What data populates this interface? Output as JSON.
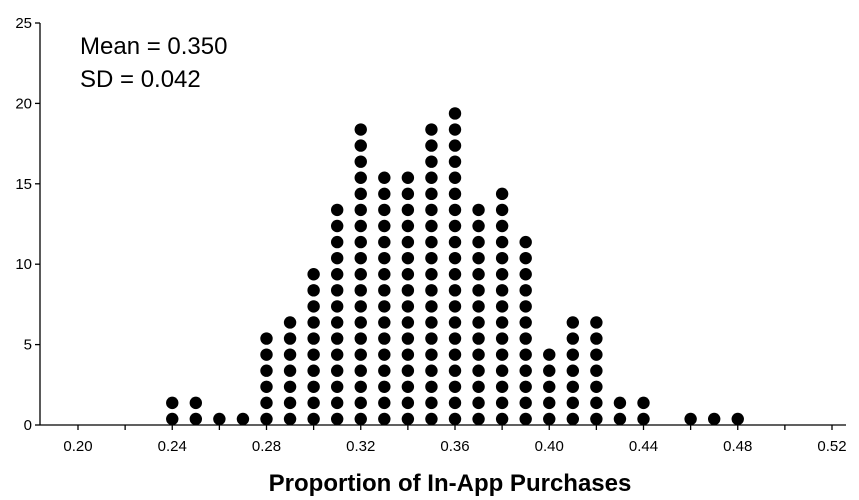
{
  "chart_data": {
    "type": "dot",
    "xlabel": "Proportion of In-App Purchases",
    "ylabel": "",
    "xlim": [
      0.2,
      0.52
    ],
    "ylim": [
      0,
      25
    ],
    "x_ticks": [
      "0.20",
      "0.24",
      "0.28",
      "0.32",
      "0.36",
      "0.40",
      "0.44",
      "0.48",
      "0.52"
    ],
    "y_ticks": [
      "0",
      "5",
      "10",
      "15",
      "20",
      "25"
    ],
    "annotations": [
      "Mean = 0.350",
      "SD = 0.042"
    ],
    "points": [
      {
        "x": 0.24,
        "count": 2
      },
      {
        "x": 0.25,
        "count": 2
      },
      {
        "x": 0.26,
        "count": 1
      },
      {
        "x": 0.27,
        "count": 1
      },
      {
        "x": 0.28,
        "count": 6
      },
      {
        "x": 0.29,
        "count": 7
      },
      {
        "x": 0.3,
        "count": 10
      },
      {
        "x": 0.31,
        "count": 14
      },
      {
        "x": 0.32,
        "count": 19
      },
      {
        "x": 0.33,
        "count": 16
      },
      {
        "x": 0.34,
        "count": 16
      },
      {
        "x": 0.35,
        "count": 19
      },
      {
        "x": 0.36,
        "count": 20
      },
      {
        "x": 0.37,
        "count": 14
      },
      {
        "x": 0.38,
        "count": 15
      },
      {
        "x": 0.39,
        "count": 12
      },
      {
        "x": 0.4,
        "count": 5
      },
      {
        "x": 0.41,
        "count": 7
      },
      {
        "x": 0.42,
        "count": 7
      },
      {
        "x": 0.43,
        "count": 2
      },
      {
        "x": 0.44,
        "count": 2
      },
      {
        "x": 0.46,
        "count": 1
      },
      {
        "x": 0.47,
        "count": 1
      },
      {
        "x": 0.48,
        "count": 1
      }
    ],
    "dot_color": "#000000"
  }
}
